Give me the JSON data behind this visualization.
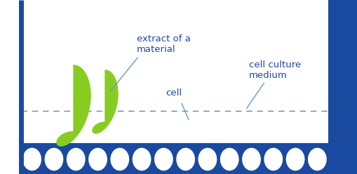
{
  "bg_color": "#ffffff",
  "border_color": "#1a4a9f",
  "liquid_line_color": "#5588cc",
  "cell_fill_color": "#1a4a9f",
  "cell_inner_color": "#ffffff",
  "cell_count": 14,
  "drop_color": "#88cc22",
  "label_color": "#2244aa",
  "label_extract": "extract of a\nmaterial",
  "label_cell": "cell",
  "label_medium": "cell culture\nmedium",
  "label_fontsize": 9.5,
  "annotation_color": "#6699cc",
  "right_border_fill": "#1a4a9f"
}
